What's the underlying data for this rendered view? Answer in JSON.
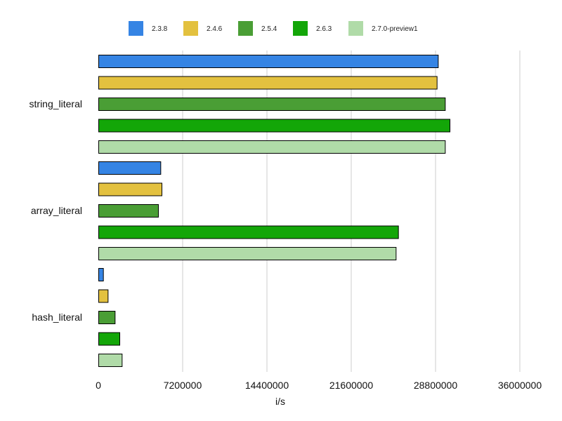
{
  "chart_data": {
    "type": "bar",
    "orientation": "horizontal",
    "title": "",
    "xlabel": "i/s",
    "ylabel": "",
    "categories": [
      "string_literal",
      "array_literal",
      "hash_literal"
    ],
    "series": [
      {
        "name": "2.3.8",
        "color": "#3584e4",
        "values": [
          29000000,
          5300000,
          400000
        ]
      },
      {
        "name": "2.4.6",
        "color": "#e3c13f",
        "values": [
          28900000,
          5400000,
          800000
        ]
      },
      {
        "name": "2.5.4",
        "color": "#4a9e35",
        "values": [
          29600000,
          5100000,
          1400000
        ]
      },
      {
        "name": "2.6.3",
        "color": "#13a608",
        "values": [
          30000000,
          25600000,
          1800000
        ]
      },
      {
        "name": "2.7.0-preview1",
        "color": "#b0dba8",
        "values": [
          29600000,
          25400000,
          2000000
        ]
      }
    ],
    "xlim": [
      0,
      36000000
    ],
    "xticks": [
      "0",
      "7200000",
      "14400000",
      "21600000",
      "28800000",
      "36000000"
    ],
    "grid": "vertical",
    "legend_position": "top"
  }
}
